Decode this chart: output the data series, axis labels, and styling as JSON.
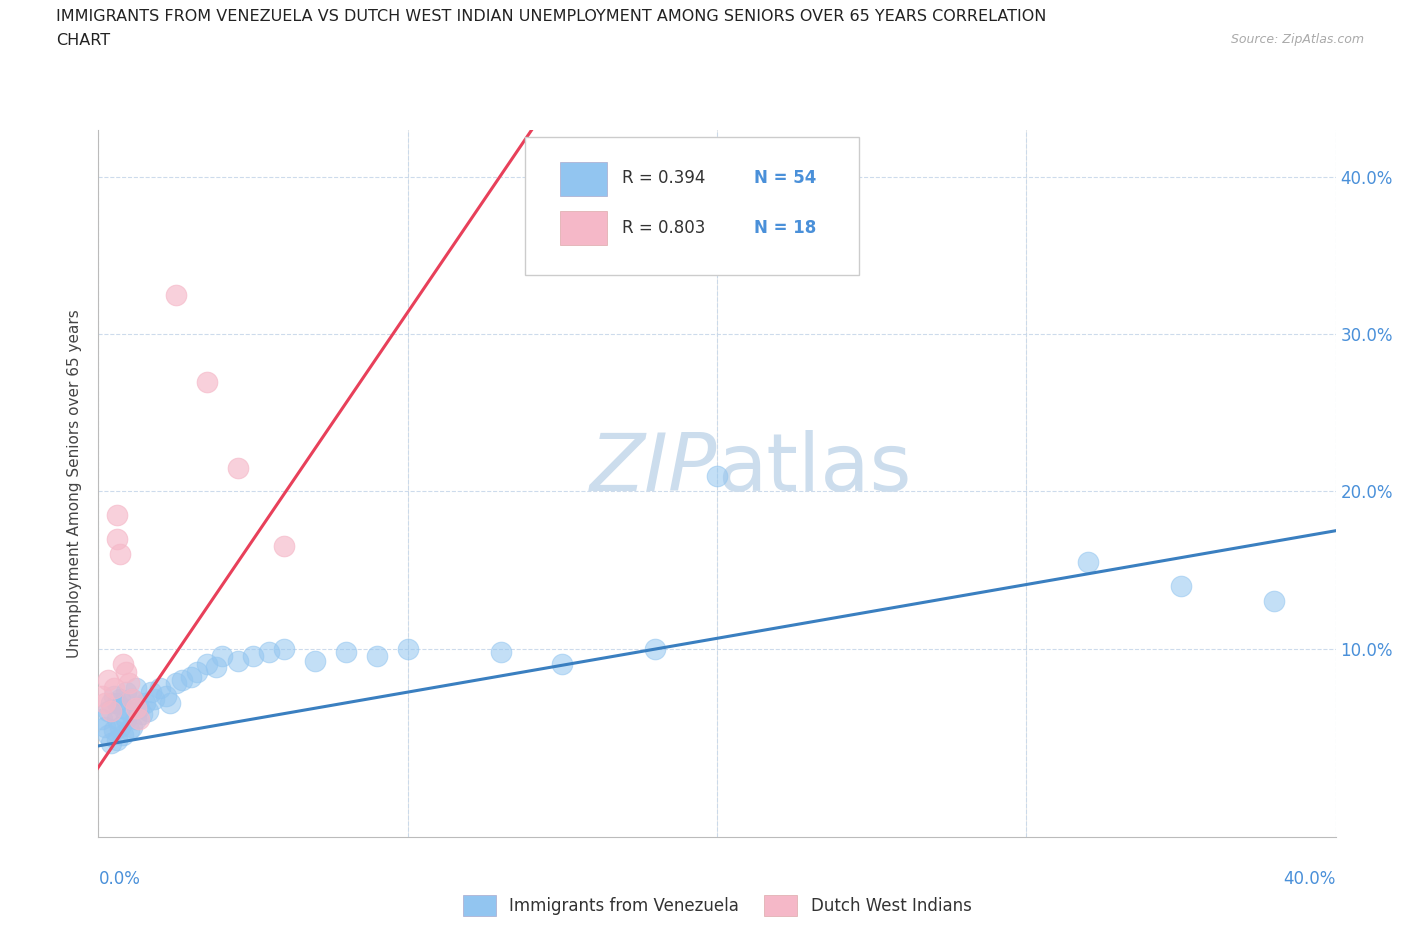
{
  "title_line1": "IMMIGRANTS FROM VENEZUELA VS DUTCH WEST INDIAN UNEMPLOYMENT AMONG SENIORS OVER 65 YEARS CORRELATION",
  "title_line2": "CHART",
  "source_text": "Source: ZipAtlas.com",
  "ylabel": "Unemployment Among Seniors over 65 years",
  "xlim": [
    0.0,
    0.4
  ],
  "ylim": [
    -0.02,
    0.43
  ],
  "xtick_labels_bottom": [
    "0.0%",
    "40.0%"
  ],
  "xtick_vals_bottom": [
    0.0,
    0.4
  ],
  "ytick_labels": [
    "10.0%",
    "20.0%",
    "30.0%",
    "40.0%"
  ],
  "ytick_vals": [
    0.1,
    0.2,
    0.3,
    0.4
  ],
  "blue_color": "#92c5f0",
  "pink_color": "#f5b8c8",
  "blue_line_color": "#3a7fc0",
  "pink_line_color": "#e8405a",
  "watermark_color": "#ccdded",
  "background_color": "#ffffff",
  "grid_color": "#c8d8ea",
  "legend_label_blue": "Immigrants from Venezuela",
  "legend_label_pink": "Dutch West Indians",
  "blue_scatter_x": [
    0.001,
    0.002,
    0.003,
    0.003,
    0.004,
    0.004,
    0.005,
    0.005,
    0.006,
    0.006,
    0.006,
    0.007,
    0.007,
    0.008,
    0.008,
    0.009,
    0.009,
    0.01,
    0.01,
    0.011,
    0.011,
    0.012,
    0.012,
    0.013,
    0.014,
    0.015,
    0.016,
    0.017,
    0.018,
    0.02,
    0.022,
    0.023,
    0.025,
    0.027,
    0.03,
    0.032,
    0.035,
    0.038,
    0.04,
    0.045,
    0.05,
    0.055,
    0.06,
    0.07,
    0.08,
    0.09,
    0.1,
    0.13,
    0.15,
    0.18,
    0.2,
    0.32,
    0.35,
    0.38
  ],
  "blue_scatter_y": [
    0.055,
    0.05,
    0.06,
    0.045,
    0.065,
    0.04,
    0.07,
    0.048,
    0.065,
    0.055,
    0.042,
    0.068,
    0.05,
    0.062,
    0.045,
    0.072,
    0.055,
    0.06,
    0.048,
    0.068,
    0.05,
    0.075,
    0.055,
    0.062,
    0.058,
    0.065,
    0.06,
    0.072,
    0.068,
    0.075,
    0.07,
    0.065,
    0.078,
    0.08,
    0.082,
    0.085,
    0.09,
    0.088,
    0.095,
    0.092,
    0.095,
    0.098,
    0.1,
    0.092,
    0.098,
    0.095,
    0.1,
    0.098,
    0.09,
    0.1,
    0.21,
    0.155,
    0.14,
    0.13
  ],
  "pink_scatter_x": [
    0.001,
    0.002,
    0.003,
    0.004,
    0.005,
    0.006,
    0.006,
    0.007,
    0.008,
    0.009,
    0.01,
    0.011,
    0.012,
    0.013,
    0.025,
    0.035,
    0.045,
    0.06
  ],
  "pink_scatter_y": [
    0.07,
    0.065,
    0.08,
    0.06,
    0.075,
    0.185,
    0.17,
    0.16,
    0.09,
    0.085,
    0.078,
    0.068,
    0.062,
    0.055,
    0.325,
    0.27,
    0.215,
    0.165
  ],
  "blue_trend_x": [
    0.0,
    0.4
  ],
  "blue_trend_y": [
    0.038,
    0.175
  ],
  "pink_trend_x": [
    -0.005,
    0.14
  ],
  "pink_trend_y": [
    0.01,
    0.43
  ]
}
